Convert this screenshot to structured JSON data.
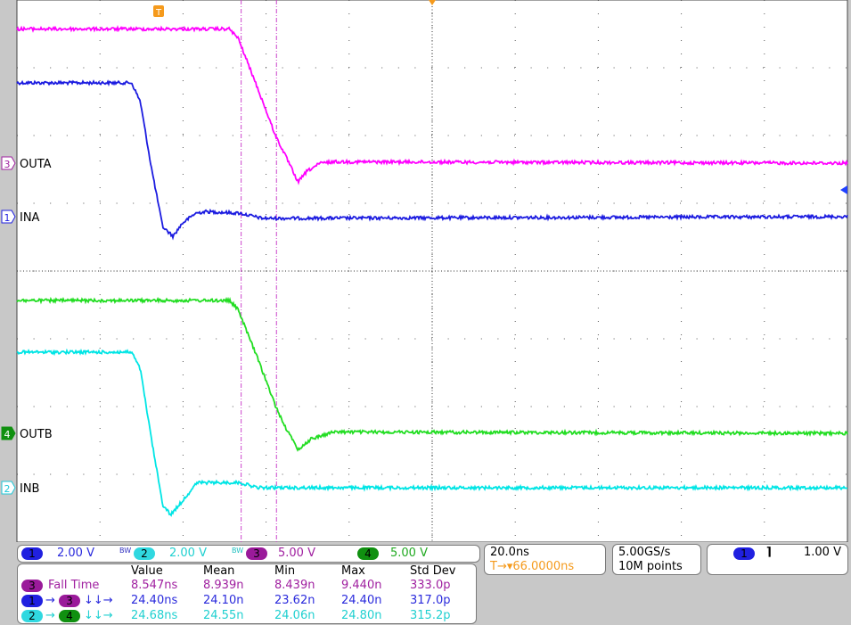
{
  "chart_data": {
    "type": "line",
    "title": "",
    "xlabel": "",
    "ylabel": "",
    "x_unit": "ns",
    "xlim": [
      -34,
      166
    ],
    "grid": true,
    "horizontal_scale": "20.0ns",
    "horizontal_delay": "66.0000ns",
    "series": [
      {
        "name": "INA",
        "channel": "1",
        "scale_v_per_div": 2,
        "color": "#1c1ce0",
        "x": [
          -34.1,
          -6.4,
          -4.3,
          -1.7,
          1.1,
          3.6,
          5.8,
          9.0,
          11.6,
          19.7,
          25.1,
          165.9
        ],
        "y": [
          3.95,
          3.95,
          3.4,
          1.5,
          -0.3,
          -0.58,
          -0.2,
          0.1,
          0.15,
          0.1,
          -0.05,
          0.0
        ]
      },
      {
        "name": "OUTA",
        "channel": "3",
        "scale_v_per_div": 5,
        "color": "#ff00ff",
        "x": [
          -34.1,
          17.2,
          19.3,
          24.0,
          28.3,
          30.9,
          33.7,
          35.8,
          39.1,
          42.3,
          165.9
        ],
        "y": [
          9.9,
          9.9,
          9.2,
          5.5,
          2.0,
          0.4,
          -1.4,
          -0.6,
          0.0,
          0.1,
          0.0
        ]
      },
      {
        "name": "INB",
        "channel": "2",
        "scale_v_per_div": 2,
        "color": "#00e5e5",
        "x": [
          -34.1,
          -6.4,
          -4.3,
          -1.7,
          1.1,
          3.0,
          5.8,
          9.4,
          19.7,
          24.0,
          165.9
        ],
        "y": [
          4.0,
          4.0,
          3.5,
          1.5,
          -0.5,
          -0.8,
          -0.4,
          0.15,
          0.15,
          0.0,
          0.0
        ]
      },
      {
        "name": "OUTB",
        "channel": "4",
        "scale_v_per_div": 5,
        "color": "#22dd22",
        "x": [
          -34.1,
          17.2,
          19.3,
          24.0,
          28.3,
          30.9,
          33.7,
          36.9,
          42.3,
          165.9
        ],
        "y": [
          9.8,
          9.8,
          9.1,
          5.5,
          2.0,
          0.3,
          -1.2,
          -0.4,
          0.1,
          0.0
        ]
      }
    ],
    "cursors_ns": [
      20.0,
      28.5
    ],
    "trigger_time_ns": 0
  },
  "labels": {
    "ch3": "OUTA",
    "ch1": "INA",
    "ch4": "OUTB",
    "ch2": "INB",
    "trigger_marker": "T"
  },
  "channels": [
    {
      "num": "1",
      "scale": "2.00 V",
      "bw": "BW"
    },
    {
      "num": "2",
      "scale": "2.00 V",
      "bw": "BW"
    },
    {
      "num": "3",
      "scale": "5.00 V",
      "bw": ""
    },
    {
      "num": "4",
      "scale": "5.00 V",
      "bw": ""
    }
  ],
  "measurements": {
    "headers": [
      "Value",
      "Mean",
      "Min",
      "Max",
      "Std Dev"
    ],
    "rows": [
      {
        "src": "3",
        "label": "Fall Time",
        "values": [
          "8.547ns",
          "8.939n",
          "8.439n",
          "9.440n",
          "333.0p"
        ]
      },
      {
        "src": "1",
        "dst": "3",
        "label": "↓↓→",
        "values": [
          "24.40ns",
          "24.10n",
          "23.62n",
          "24.40n",
          "317.0p"
        ]
      },
      {
        "src": "2",
        "dst": "4",
        "label": "↓↓→",
        "values": [
          "24.68ns",
          "24.55n",
          "24.06n",
          "24.80n",
          "315.2p"
        ]
      }
    ]
  },
  "timebase": {
    "scale": "20.0ns",
    "delay": "66.0000ns",
    "delay_prefix": "T→▾"
  },
  "acquisition": {
    "rate": "5.00GS/s",
    "length": "10M points"
  },
  "trigger": {
    "source": "1",
    "slope": "falling-edge-icon",
    "slope_glyph": "⌉",
    "level": "1.00 V"
  }
}
